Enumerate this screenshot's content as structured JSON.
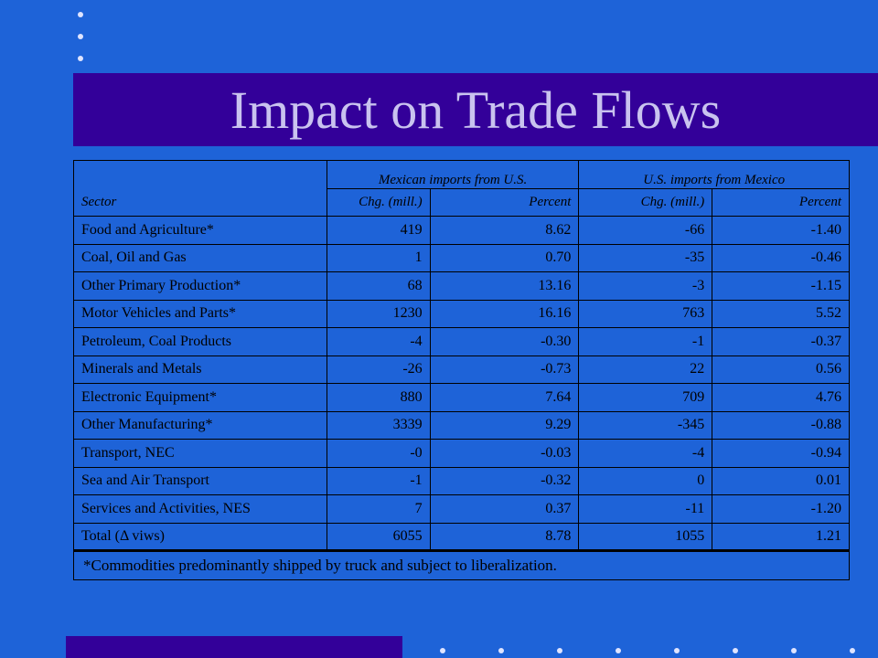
{
  "slide": {
    "title": "Impact on Trade Flows",
    "colors": {
      "background": "#1e63d8",
      "band": "#330099",
      "title_text": "#c9c3ef"
    }
  },
  "table": {
    "group_headers": [
      "Mexican imports from U.S.",
      "U.S. imports from Mexico"
    ],
    "column_headers": [
      "Sector",
      "Chg. (mill.)",
      "Percent",
      "Chg. (mill.)",
      "Percent"
    ],
    "rows": [
      [
        "Food and Agriculture*",
        "419",
        "8.62",
        "-66",
        "-1.40"
      ],
      [
        "Coal, Oil and Gas",
        "1",
        "0.70",
        "-35",
        "-0.46"
      ],
      [
        "Other Primary Production*",
        "68",
        "13.16",
        "-3",
        "-1.15"
      ],
      [
        "Motor Vehicles and Parts*",
        "1230",
        "16.16",
        "763",
        "5.52"
      ],
      [
        "Petroleum, Coal Products",
        "-4",
        "-0.30",
        "-1",
        "-0.37"
      ],
      [
        "Minerals and Metals",
        "-26",
        "-0.73",
        "22",
        "0.56"
      ],
      [
        "Electronic Equipment*",
        "880",
        "7.64",
        "709",
        "4.76"
      ],
      [
        "Other Manufacturing*",
        "3339",
        "9.29",
        "-345",
        "-0.88"
      ],
      [
        "Transport, NEC",
        "-0",
        "-0.03",
        "-4",
        "-0.94"
      ],
      [
        "Sea and Air Transport",
        "-1",
        "-0.32",
        "0",
        "0.01"
      ],
      [
        "Services and Activities, NES",
        "7",
        "0.37",
        "-11",
        "-1.20"
      ],
      [
        "Total (Δ viws)",
        "6055",
        "8.78",
        "1055",
        "1.21"
      ]
    ],
    "footnote": "*Commodities predominantly shipped by truck and subject to liberalization."
  }
}
